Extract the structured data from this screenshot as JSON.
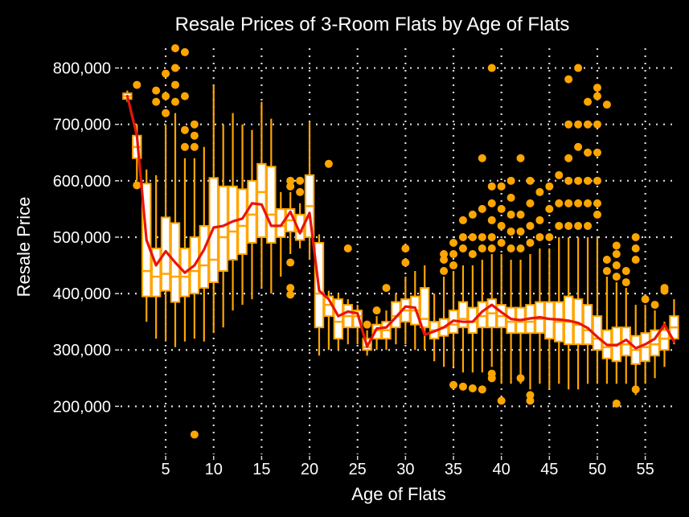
{
  "chart_data": {
    "type": "boxplot",
    "title": "Resale Prices of 3-Room Flats by Age of Flats",
    "xlabel": "Age of Flats",
    "ylabel": "Resale Price",
    "xlim": [
      0.3,
      58.3
    ],
    "ylim": [
      115000,
      835000
    ],
    "x_ticks": [
      5,
      10,
      15,
      20,
      25,
      30,
      35,
      40,
      45,
      50,
      55
    ],
    "x_tick_labels": [
      "5",
      "10",
      "15",
      "20",
      "25",
      "30",
      "35",
      "40",
      "45",
      "50",
      "55"
    ],
    "y_ticks": [
      200000,
      300000,
      400000,
      500000,
      600000,
      700000,
      800000
    ],
    "y_tick_labels": [
      "200,000",
      "300,000",
      "400,000",
      "500,000",
      "600,000",
      "700,000",
      "800,000"
    ],
    "grid": true,
    "colors": {
      "background": "#000000",
      "box_fill": "#ffffff",
      "box_border": "#ffa500",
      "outlier": "#ffa500",
      "mean_line": "#e8140c",
      "grid": "#d9d9d9",
      "text": "#ffffff"
    },
    "boxes": [
      {
        "age": 1,
        "min": 740000,
        "q1": 745000,
        "median": 750000,
        "q3": 755000,
        "max": 760000,
        "outliers": []
      },
      {
        "age": 2,
        "min": 600000,
        "q1": 640000,
        "median": 660000,
        "q3": 680000,
        "max": 700000,
        "outliers": [
          770000,
          592000
        ]
      },
      {
        "age": 3,
        "min": 350000,
        "q1": 395000,
        "median": 440000,
        "q3": 595000,
        "max": 620000,
        "outliers": []
      },
      {
        "age": 4,
        "min": 320000,
        "q1": 395000,
        "median": 430000,
        "q3": 480000,
        "max": 610000,
        "outliers": [
          740000,
          760000
        ]
      },
      {
        "age": 5,
        "min": 315000,
        "q1": 405000,
        "median": 435000,
        "q3": 535000,
        "max": 700000,
        "outliers": [
          720000,
          750000,
          790000
        ]
      },
      {
        "age": 6,
        "min": 305000,
        "q1": 385000,
        "median": 430000,
        "q3": 525000,
        "max": 720000,
        "outliers": [
          740000,
          770000,
          800000,
          835000
        ]
      },
      {
        "age": 7,
        "min": 315000,
        "q1": 395000,
        "median": 430000,
        "q3": 480000,
        "max": 640000,
        "outliers": [
          660000,
          690000,
          750000,
          828000
        ]
      },
      {
        "age": 8,
        "min": 320000,
        "q1": 400000,
        "median": 440000,
        "q3": 500000,
        "max": 640000,
        "outliers": [
          660000,
          680000,
          700000,
          150000
        ]
      },
      {
        "age": 9,
        "min": 315000,
        "q1": 410000,
        "median": 450000,
        "q3": 520000,
        "max": 660000,
        "outliers": []
      },
      {
        "age": 10,
        "min": 330000,
        "q1": 420000,
        "median": 460000,
        "q3": 605000,
        "max": 770000,
        "outliers": []
      },
      {
        "age": 11,
        "min": 340000,
        "q1": 440000,
        "median": 500000,
        "q3": 590000,
        "max": 700000,
        "outliers": []
      },
      {
        "age": 12,
        "min": 370000,
        "q1": 460000,
        "median": 510000,
        "q3": 590000,
        "max": 720000,
        "outliers": []
      },
      {
        "age": 13,
        "min": 380000,
        "q1": 470000,
        "median": 520000,
        "q3": 585000,
        "max": 700000,
        "outliers": []
      },
      {
        "age": 14,
        "min": 390000,
        "q1": 490000,
        "median": 540000,
        "q3": 600000,
        "max": 690000,
        "outliers": []
      },
      {
        "age": 15,
        "min": 410000,
        "q1": 500000,
        "median": 580000,
        "q3": 630000,
        "max": 740000,
        "outliers": []
      },
      {
        "age": 16,
        "min": 400000,
        "q1": 490000,
        "median": 540000,
        "q3": 625000,
        "max": 710000,
        "outliers": []
      },
      {
        "age": 17,
        "min": 430000,
        "q1": 500000,
        "median": 520000,
        "q3": 550000,
        "max": 580000,
        "outliers": []
      },
      {
        "age": 18,
        "min": 470000,
        "q1": 510000,
        "median": 530000,
        "q3": 550000,
        "max": 580000,
        "outliers": [
          600000,
          590000,
          455000,
          410000,
          398000
        ]
      },
      {
        "age": 19,
        "min": 480000,
        "q1": 495000,
        "median": 510000,
        "q3": 540000,
        "max": 560000,
        "outliers": [
          580000,
          600000
        ]
      },
      {
        "age": 20,
        "min": 460000,
        "q1": 500000,
        "median": 555000,
        "q3": 610000,
        "max": 705000,
        "outliers": []
      },
      {
        "age": 21,
        "min": 290000,
        "q1": 340000,
        "median": 400000,
        "q3": 490000,
        "max": 505000,
        "outliers": []
      },
      {
        "age": 22,
        "min": 300000,
        "q1": 360000,
        "median": 380000,
        "q3": 395000,
        "max": 405000,
        "outliers": [
          630000
        ]
      },
      {
        "age": 23,
        "min": 300000,
        "q1": 320000,
        "median": 350000,
        "q3": 390000,
        "max": 400000,
        "outliers": []
      },
      {
        "age": 24,
        "min": 310000,
        "q1": 340000,
        "median": 360000,
        "q3": 380000,
        "max": 390000,
        "outliers": [
          480000
        ]
      },
      {
        "age": 25,
        "min": 310000,
        "q1": 340000,
        "median": 360000,
        "q3": 370000,
        "max": 380000,
        "outliers": []
      },
      {
        "age": 26,
        "min": 290000,
        "q1": 300000,
        "median": 305000,
        "q3": 320000,
        "max": 335000,
        "outliers": [
          345000
        ]
      },
      {
        "age": 27,
        "min": 300000,
        "q1": 320000,
        "median": 335000,
        "q3": 345000,
        "max": 360000,
        "outliers": [
          370000
        ]
      },
      {
        "age": 28,
        "min": 300000,
        "q1": 320000,
        "median": 335000,
        "q3": 350000,
        "max": 370000,
        "outliers": [
          410000
        ]
      },
      {
        "age": 29,
        "min": 310000,
        "q1": 340000,
        "median": 360000,
        "q3": 385000,
        "max": 400000,
        "outliers": []
      },
      {
        "age": 30,
        "min": 310000,
        "q1": 350000,
        "median": 370000,
        "q3": 390000,
        "max": 430000,
        "outliers": [
          455000,
          480000
        ]
      },
      {
        "age": 31,
        "min": 300000,
        "q1": 345000,
        "median": 370000,
        "q3": 395000,
        "max": 440000,
        "outliers": []
      },
      {
        "age": 32,
        "min": 300000,
        "q1": 340000,
        "median": 355000,
        "q3": 410000,
        "max": 450000,
        "outliers": []
      },
      {
        "age": 33,
        "min": 280000,
        "q1": 320000,
        "median": 335000,
        "q3": 350000,
        "max": 400000,
        "outliers": []
      },
      {
        "age": 34,
        "min": 270000,
        "q1": 325000,
        "median": 340000,
        "q3": 355000,
        "max": 430000,
        "outliers": [
          440000,
          460000,
          470000
        ]
      },
      {
        "age": 35,
        "min": 270000,
        "q1": 330000,
        "median": 345000,
        "q3": 370000,
        "max": 440000,
        "outliers": [
          238000,
          450000,
          470000,
          490000
        ]
      },
      {
        "age": 36,
        "min": 260000,
        "q1": 340000,
        "median": 355000,
        "q3": 385000,
        "max": 450000,
        "outliers": [
          235000,
          480000,
          500000,
          530000
        ]
      },
      {
        "age": 37,
        "min": 260000,
        "q1": 330000,
        "median": 350000,
        "q3": 375000,
        "max": 450000,
        "outliers": [
          232000,
          470000,
          500000,
          540000
        ]
      },
      {
        "age": 38,
        "min": 260000,
        "q1": 340000,
        "median": 360000,
        "q3": 385000,
        "max": 460000,
        "outliers": [
          230000,
          480000,
          500000,
          550000,
          640000
        ]
      },
      {
        "age": 39,
        "min": 270000,
        "q1": 340000,
        "median": 365000,
        "q3": 390000,
        "max": 470000,
        "outliers": [
          250000,
          258000,
          480000,
          500000,
          530000,
          560000,
          590000,
          800000
        ]
      },
      {
        "age": 40,
        "min": 240000,
        "q1": 340000,
        "median": 360000,
        "q3": 380000,
        "max": 470000,
        "outliers": [
          210000,
          490000,
          520000,
          550000,
          590000
        ]
      },
      {
        "age": 41,
        "min": 240000,
        "q1": 330000,
        "median": 350000,
        "q3": 375000,
        "max": 460000,
        "outliers": [
          480000,
          510000,
          540000,
          570000,
          600000
        ]
      },
      {
        "age": 42,
        "min": 240000,
        "q1": 330000,
        "median": 350000,
        "q3": 375000,
        "max": 460000,
        "outliers": [
          250000,
          480000,
          510000,
          540000,
          640000
        ]
      },
      {
        "age": 43,
        "min": 230000,
        "q1": 330000,
        "median": 350000,
        "q3": 380000,
        "max": 470000,
        "outliers": [
          210000,
          220000,
          490000,
          520000,
          560000,
          600000
        ]
      },
      {
        "age": 44,
        "min": 240000,
        "q1": 330000,
        "median": 355000,
        "q3": 385000,
        "max": 480000,
        "outliers": [
          500000,
          530000,
          580000
        ]
      },
      {
        "age": 45,
        "min": 230000,
        "q1": 320000,
        "median": 355000,
        "q3": 385000,
        "max": 480000,
        "outliers": [
          500000,
          550000,
          590000
        ]
      },
      {
        "age": 46,
        "min": 240000,
        "q1": 315000,
        "median": 350000,
        "q3": 385000,
        "max": 500000,
        "outliers": [
          520000,
          560000,
          610000
        ]
      },
      {
        "age": 47,
        "min": 230000,
        "q1": 310000,
        "median": 350000,
        "q3": 395000,
        "max": 500000,
        "outliers": [
          520000,
          560000,
          600000,
          640000,
          700000,
          780000
        ]
      },
      {
        "age": 48,
        "min": 230000,
        "q1": 310000,
        "median": 345000,
        "q3": 390000,
        "max": 500000,
        "outliers": [
          520000,
          560000,
          600000,
          660000,
          700000,
          800000
        ]
      },
      {
        "age": 49,
        "min": 240000,
        "q1": 310000,
        "median": 335000,
        "q3": 380000,
        "max": 500000,
        "outliers": [
          520000,
          560000,
          600000,
          650000,
          700000,
          740000
        ]
      },
      {
        "age": 50,
        "min": 240000,
        "q1": 300000,
        "median": 320000,
        "q3": 360000,
        "max": 500000,
        "outliers": [
          540000,
          560000,
          600000,
          650000,
          700000,
          750000,
          765000
        ]
      },
      {
        "age": 51,
        "min": 240000,
        "q1": 285000,
        "median": 305000,
        "q3": 335000,
        "max": 430000,
        "outliers": [
          440000,
          460000,
          735000
        ]
      },
      {
        "age": 52,
        "min": 240000,
        "q1": 280000,
        "median": 310000,
        "q3": 340000,
        "max": 420000,
        "outliers": [
          205000,
          430000,
          450000,
          470000,
          485000
        ]
      },
      {
        "age": 53,
        "min": 240000,
        "q1": 290000,
        "median": 310000,
        "q3": 340000,
        "max": 410000,
        "outliers": [
          420000,
          440000
        ]
      },
      {
        "age": 54,
        "min": 220000,
        "q1": 275000,
        "median": 300000,
        "q3": 325000,
        "max": 380000,
        "outliers": [
          230000,
          460000,
          480000,
          500000
        ]
      },
      {
        "age": 55,
        "min": 240000,
        "q1": 280000,
        "median": 305000,
        "q3": 330000,
        "max": 380000,
        "outliers": [
          390000
        ]
      },
      {
        "age": 56,
        "min": 250000,
        "q1": 290000,
        "median": 310000,
        "q3": 335000,
        "max": 370000,
        "outliers": [
          380000
        ]
      },
      {
        "age": 57,
        "min": 270000,
        "q1": 300000,
        "median": 320000,
        "q3": 335000,
        "max": 350000,
        "outliers": [
          405000,
          410000
        ]
      },
      {
        "age": 58,
        "min": 310000,
        "q1": 320000,
        "median": 340000,
        "q3": 360000,
        "max": 390000,
        "outliers": []
      }
    ],
    "mean_line": {
      "x": [
        1,
        2,
        3,
        4,
        5,
        6,
        7,
        8,
        9,
        10,
        11,
        12,
        13,
        14,
        15,
        16,
        17,
        18,
        19,
        20,
        21,
        22,
        23,
        24,
        25,
        26,
        27,
        28,
        29,
        30,
        31,
        32,
        33,
        34,
        35,
        36,
        37,
        38,
        39,
        40,
        41,
        42,
        43,
        44,
        45,
        46,
        47,
        48,
        49,
        50,
        51,
        52,
        53,
        54,
        55,
        56,
        57,
        58
      ],
      "y": [
        750000,
        680000,
        495000,
        450000,
        475000,
        455000,
        437000,
        450000,
        478000,
        517000,
        520000,
        528000,
        533000,
        560000,
        558000,
        520000,
        520000,
        545000,
        507000,
        543000,
        405000,
        390000,
        360000,
        368000,
        365000,
        306000,
        338000,
        340000,
        358000,
        377000,
        375000,
        327000,
        333000,
        340000,
        352000,
        350000,
        350000,
        368000,
        380000,
        367000,
        355000,
        353000,
        356000,
        358000,
        355000,
        354000,
        352000,
        348000,
        339000,
        323000,
        309000,
        308000,
        318000,
        303000,
        310000,
        320000,
        345000,
        315000
      ]
    }
  }
}
